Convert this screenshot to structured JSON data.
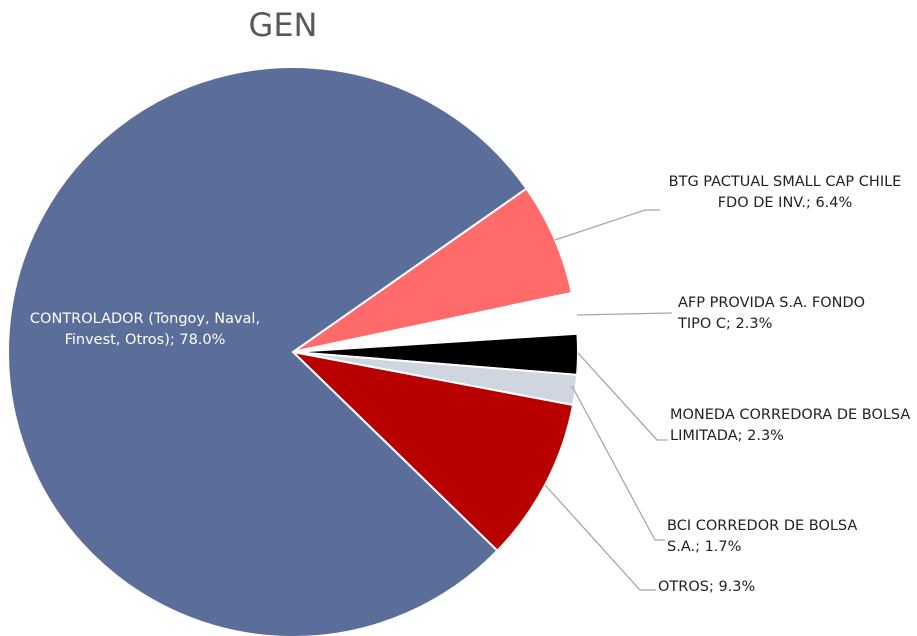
{
  "chart_data": {
    "type": "pie",
    "title": "GEN",
    "value_labels": [
      "BTG PACTUAL SMALL CAP CHILE FDO DE INV.; 6.4%",
      "AFP PROVIDA S.A. FONDO TIPO C; 2.3%",
      "MONEDA CORREDORA DE BOLSA LIMITADA; 2.3%",
      "BCI CORREDOR DE BOLSA S.A.; 1.7%",
      "OTROS; 9.3%",
      "CONTROLADOR (Tongoy, Naval, Finvest, Otros); 78.0%"
    ],
    "values": [
      6.4,
      2.3,
      2.3,
      1.7,
      9.3,
      78.0
    ],
    "colors": [
      "#ff6b6b",
      "#ffffff",
      "#000000",
      "#cfd6df",
      "#b80000",
      "#5b6e99"
    ]
  }
}
